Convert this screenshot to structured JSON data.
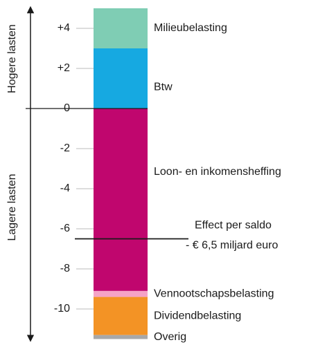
{
  "chart_data": {
    "type": "stacked_bar",
    "axis_labels": {
      "up": "Hogere lasten",
      "down": "Lagere lasten"
    },
    "ylim": [
      -11.5,
      5
    ],
    "yticks": [
      {
        "value": 4,
        "label": "+4"
      },
      {
        "value": 2,
        "label": "+2"
      },
      0,
      -2,
      -4,
      -6,
      -8,
      -10
    ],
    "series": [
      {
        "name": "Btw",
        "color": "#16a9e1",
        "values": [
          3
        ]
      },
      {
        "name": "Milieubelasting",
        "color": "#7fcdb4",
        "values": [
          2
        ]
      },
      {
        "name": "Loon- en inkomensheffing",
        "color": "#c0066e",
        "values": [
          -9.1
        ]
      },
      {
        "name": "Vennootschapsbelasting",
        "color": "#f5a3c7",
        "values": [
          -0.3
        ]
      },
      {
        "name": "Dividendbelasting",
        "color": "#f39325",
        "values": [
          -1.9
        ]
      },
      {
        "name": "Overig",
        "color": "#a8a8a8",
        "values": [
          -0.2
        ]
      }
    ],
    "annotation": {
      "text": [
        "Effect per saldo",
        "- € 6,5 miljard euro"
      ],
      "value": -6.5
    }
  }
}
